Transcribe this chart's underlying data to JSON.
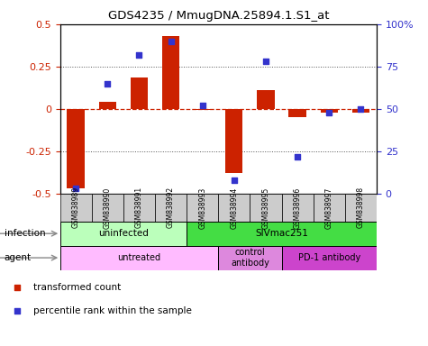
{
  "title": "GDS4235 / MmugDNA.25894.1.S1_at",
  "samples": [
    "GSM838989",
    "GSM838990",
    "GSM838991",
    "GSM838992",
    "GSM838993",
    "GSM838994",
    "GSM838995",
    "GSM838996",
    "GSM838997",
    "GSM838998"
  ],
  "bar_values": [
    -0.47,
    0.04,
    0.185,
    0.43,
    -0.005,
    -0.38,
    0.11,
    -0.05,
    -0.02,
    -0.02
  ],
  "scatter_values": [
    3,
    65,
    82,
    90,
    52,
    8,
    78,
    22,
    48,
    50
  ],
  "bar_color": "#cc2200",
  "scatter_color": "#3333cc",
  "ylim_left": [
    -0.5,
    0.5
  ],
  "ylim_right": [
    0,
    100
  ],
  "yticks_left": [
    -0.5,
    -0.25,
    0,
    0.25,
    0.5
  ],
  "ytick_labels_left": [
    "-0.5",
    "-0.25",
    "0",
    "0.25",
    "0.5"
  ],
  "yticks_right": [
    0,
    25,
    50,
    75,
    100
  ],
  "ytick_labels_right": [
    "0",
    "25",
    "50",
    "75",
    "100%"
  ],
  "hline_color": "#cc2200",
  "dotted_color": "#555555",
  "infection_labels": [
    {
      "text": "uninfected",
      "start": 0,
      "end": 3,
      "color": "#bbffbb"
    },
    {
      "text": "SIVmac251",
      "start": 4,
      "end": 9,
      "color": "#44dd44"
    }
  ],
  "agent_labels": [
    {
      "text": "untreated",
      "start": 0,
      "end": 4,
      "color": "#ffbbff"
    },
    {
      "text": "control\nantibody",
      "start": 5,
      "end": 6,
      "color": "#dd88dd"
    },
    {
      "text": "PD-1 antibody",
      "start": 7,
      "end": 9,
      "color": "#cc44cc"
    }
  ],
  "sample_box_color": "#cccccc",
  "legend_items": [
    {
      "label": "transformed count",
      "color": "#cc2200"
    },
    {
      "label": "percentile rank within the sample",
      "color": "#3333cc"
    }
  ],
  "bar_width": 0.55,
  "background_color": "#ffffff"
}
